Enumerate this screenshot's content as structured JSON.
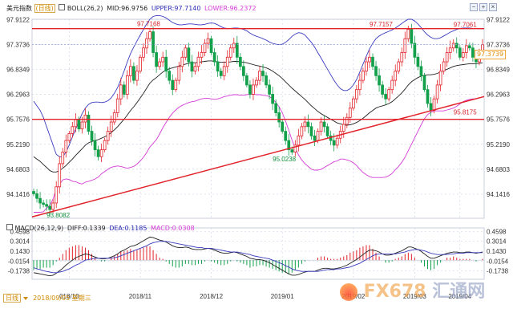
{
  "header": {
    "symbol": "美元指数",
    "period_badge": "(日线)",
    "boll_label": "BOLL(26,2)",
    "mid_label": "MID:96.9756",
    "upper_label": "UPPER:97.7140",
    "lower_label": "LOWER:96.2372"
  },
  "macd_header": {
    "label": "MACD(26,12,9)",
    "diff": "DIFF:0.1339",
    "dea": "DEA:0.1185",
    "macd": "MACD:0.0308"
  },
  "bottom_bar": {
    "period_tab": "日线",
    "cursor_date": "2018/09/05  星期三"
  },
  "toolbar": {
    "minus_icon_glyph": "−",
    "plus_icon_glyph": "+",
    "close_icon_glyph": "×"
  },
  "current_price_tag": "97.3739",
  "watermark": {
    "brand": "FX678",
    "cn": "汇通网"
  },
  "colors": {
    "up": "#e2232a",
    "down": "#12a04a",
    "upper_band": "#3b3bbf",
    "lower_band": "#d43bd4",
    "mid_band": "#222222",
    "resistance": "#e2232a",
    "trendline": "#e2232a",
    "diff_line": "#222222",
    "dea_line": "#3b3bbf",
    "price_tag": "#f1a33a"
  },
  "chart_data": [
    {
      "type": "candlestick",
      "title": "",
      "x_ticks": [
        "018/10",
        "2018/11",
        "2018/12",
        "2019/01",
        "2019/02",
        "2019/03",
        "2019/04"
      ],
      "y_ticks": [
        "97.9122",
        "97.3736",
        "96.8349",
        "96.2963",
        "95.7576",
        "95.2190",
        "94.6803",
        "94.1416"
      ],
      "right_y_ticks": [
        "97.9122",
        "97.3736",
        "96.8349",
        "96.2963",
        "95.7576",
        "95.2190",
        "94.6803",
        "94.1416"
      ],
      "ylim": [
        93.62,
        97.92
      ],
      "annotations": [
        {
          "text": "97.7168",
          "value": 97.7168
        },
        {
          "text": "97.7157",
          "value": 97.7157
        },
        {
          "text": "97.7061",
          "value": 97.7061
        },
        {
          "text": "95.8175",
          "value": 95.8175
        },
        {
          "text": "95.0238",
          "value": 95.0238
        },
        {
          "text": "93.8082",
          "value": 93.8082
        }
      ],
      "horizontal_lines": [
        97.7168,
        95.7576
      ],
      "current_price": 97.3739,
      "trendline": {
        "from": [
          0,
          93.65
        ],
        "to": [
          139,
          96.25
        ]
      },
      "closes": [
        94.15,
        94.05,
        93.95,
        93.92,
        93.88,
        93.81,
        93.95,
        94.3,
        94.8,
        95.05,
        95.3,
        95.45,
        95.6,
        95.75,
        95.55,
        95.7,
        95.85,
        95.5,
        95.3,
        95.1,
        94.95,
        95.1,
        95.3,
        95.5,
        95.7,
        95.9,
        96.2,
        96.5,
        96.3,
        96.7,
        96.9,
        96.6,
        96.8,
        97.1,
        97.3,
        97.5,
        97.65,
        97.2,
        96.9,
        97.0,
        97.1,
        96.8,
        96.6,
        96.4,
        96.6,
        96.9,
        97.1,
        97.3,
        97.0,
        96.8,
        96.9,
        97.1,
        97.2,
        97.4,
        97.5,
        97.2,
        97.0,
        96.8,
        96.7,
        96.9,
        97.1,
        97.3,
        97.4,
        97.1,
        96.9,
        96.7,
        96.5,
        96.3,
        96.5,
        96.6,
        96.8,
        96.7,
        96.5,
        96.3,
        96.1,
        95.9,
        95.7,
        95.5,
        95.3,
        95.1,
        95.05,
        95.2,
        95.4,
        95.6,
        95.7,
        95.6,
        95.4,
        95.3,
        95.5,
        95.7,
        95.6,
        95.4,
        95.3,
        95.2,
        95.35,
        95.5,
        95.65,
        95.8,
        96.0,
        96.2,
        96.4,
        96.6,
        96.8,
        97.0,
        97.1,
        96.9,
        96.7,
        96.5,
        96.3,
        96.2,
        96.4,
        96.6,
        96.8,
        97.0,
        97.2,
        97.5,
        97.7,
        97.4,
        97.1,
        96.9,
        96.7,
        96.4,
        96.1,
        95.95,
        96.2,
        96.5,
        96.8,
        97.0,
        97.2,
        97.3,
        97.4,
        97.3,
        97.1,
        97.2,
        97.35,
        97.3,
        97.1,
        97.0,
        97.2,
        97.37
      ],
      "mid": [
        94.95,
        94.9,
        94.85,
        94.78,
        94.72,
        94.65,
        94.62,
        94.62,
        94.65,
        94.7,
        94.76,
        94.83,
        94.9,
        94.98,
        95.05,
        95.12,
        95.2,
        95.25,
        95.28,
        95.3,
        95.32,
        95.35,
        95.38,
        95.42,
        95.47,
        95.53,
        95.6,
        95.68,
        95.76,
        95.85,
        95.95,
        96.03,
        96.12,
        96.22,
        96.32,
        96.43,
        96.54,
        96.61,
        96.66,
        96.72,
        96.78,
        96.82,
        96.85,
        96.87,
        96.89,
        96.91,
        96.93,
        96.95,
        96.97,
        96.98,
        96.98,
        96.99,
        97.0,
        97.01,
        97.02,
        97.02,
        97.01,
        97.0,
        96.99,
        96.99,
        96.99,
        97.0,
        97.01,
        97.01,
        97.0,
        96.99,
        96.98,
        96.96,
        96.94,
        96.92,
        96.91,
        96.89,
        96.87,
        96.84,
        96.8,
        96.75,
        96.7,
        96.64,
        96.57,
        96.5,
        96.43,
        96.37,
        96.31,
        96.25,
        96.19,
        96.12,
        96.05,
        95.99,
        95.93,
        95.88,
        95.84,
        95.8,
        95.76,
        95.72,
        95.68,
        95.66,
        95.64,
        95.63,
        95.64,
        95.66,
        95.69,
        95.73,
        95.78,
        95.84,
        95.9,
        95.95,
        96.0,
        96.03,
        96.05,
        96.07,
        96.1,
        96.14,
        96.2,
        96.26,
        96.33,
        96.41,
        96.5,
        96.57,
        96.62,
        96.66,
        96.69,
        96.71,
        96.72,
        96.72,
        96.73,
        96.75,
        96.78,
        96.81,
        96.84,
        96.87,
        96.9,
        96.92,
        96.93,
        96.94,
        96.95,
        96.96,
        96.96,
        96.96,
        96.97,
        96.98
      ],
      "upper": [
        96.15,
        96.05,
        95.95,
        95.8,
        95.6,
        95.4,
        95.2,
        95.0,
        94.95,
        94.95,
        95.05,
        95.2,
        95.38,
        95.55,
        95.72,
        95.88,
        96.0,
        96.08,
        96.12,
        96.13,
        96.13,
        96.12,
        96.13,
        96.16,
        96.22,
        96.32,
        96.45,
        96.62,
        96.8,
        97.0,
        97.18,
        97.32,
        97.45,
        97.58,
        97.7,
        97.82,
        97.92,
        97.98,
        98.0,
        98.0,
        97.98,
        97.95,
        97.9,
        97.85,
        97.82,
        97.8,
        97.8,
        97.81,
        97.82,
        97.82,
        97.81,
        97.8,
        97.8,
        97.81,
        97.83,
        97.84,
        97.83,
        97.8,
        97.76,
        97.73,
        97.72,
        97.72,
        97.73,
        97.73,
        97.72,
        97.7,
        97.67,
        97.62,
        97.58,
        97.55,
        97.53,
        97.5,
        97.47,
        97.43,
        97.4,
        97.38,
        97.37,
        97.38,
        97.42,
        97.48,
        97.55,
        97.6,
        97.63,
        97.62,
        97.58,
        97.5,
        97.42,
        97.32,
        97.2,
        97.08,
        96.96,
        96.84,
        96.72,
        96.6,
        96.5,
        96.42,
        96.38,
        96.38,
        96.42,
        96.5,
        96.62,
        96.78,
        96.95,
        97.12,
        97.28,
        97.4,
        97.5,
        97.56,
        97.6,
        97.63,
        97.66,
        97.69,
        97.73,
        97.78,
        97.83,
        97.88,
        97.92,
        97.92,
        97.88,
        97.82,
        97.74,
        97.65,
        97.58,
        97.53,
        97.5,
        97.5,
        97.52,
        97.56,
        97.6,
        97.64,
        97.67,
        97.7,
        97.72,
        97.73,
        97.73,
        97.73,
        97.72,
        97.72,
        97.72,
        97.71
      ],
      "lower": [
        93.75,
        93.75,
        93.75,
        93.76,
        93.84,
        93.9,
        94.04,
        94.24,
        94.35,
        94.45,
        94.47,
        94.46,
        94.42,
        94.41,
        94.38,
        94.36,
        94.4,
        94.42,
        94.44,
        94.47,
        94.51,
        94.58,
        94.63,
        94.68,
        94.72,
        94.74,
        94.75,
        94.74,
        94.72,
        94.7,
        94.72,
        94.74,
        94.79,
        94.86,
        94.94,
        95.04,
        95.16,
        95.24,
        95.32,
        95.44,
        95.58,
        95.69,
        95.8,
        95.89,
        95.96,
        96.02,
        96.06,
        96.09,
        96.12,
        96.14,
        96.15,
        96.18,
        96.2,
        96.21,
        96.21,
        96.2,
        96.19,
        96.2,
        96.22,
        96.25,
        96.26,
        96.28,
        96.29,
        96.29,
        96.28,
        96.28,
        96.29,
        96.3,
        96.3,
        96.29,
        96.29,
        96.28,
        96.27,
        96.25,
        96.2,
        96.12,
        96.03,
        95.9,
        95.72,
        95.52,
        95.31,
        95.14,
        94.99,
        94.88,
        94.8,
        94.74,
        94.68,
        94.66,
        94.66,
        94.68,
        94.72,
        94.76,
        94.8,
        94.84,
        94.86,
        94.9,
        94.9,
        94.88,
        94.86,
        94.82,
        94.76,
        94.68,
        94.61,
        94.56,
        94.52,
        94.5,
        94.5,
        94.5,
        94.5,
        94.51,
        94.54,
        94.59,
        94.67,
        94.74,
        94.83,
        94.94,
        95.08,
        95.22,
        95.36,
        95.5,
        95.64,
        95.77,
        95.86,
        95.91,
        95.94,
        95.94,
        95.94,
        95.94,
        95.96,
        95.98,
        96.0,
        96.04,
        96.09,
        96.14,
        96.17,
        96.19,
        96.2,
        96.2,
        96.22,
        96.24
      ]
    },
    {
      "type": "macd",
      "title": "",
      "y_ticks": [
        "0.4598",
        "0.3014",
        "0.1430",
        "-0.0154",
        "-0.1738"
      ],
      "ylim": [
        -0.28,
        0.49
      ],
      "diff": [
        -0.2,
        -0.21,
        -0.22,
        -0.23,
        -0.24,
        -0.25,
        -0.24,
        -0.21,
        -0.17,
        -0.13,
        -0.08,
        -0.04,
        0.0,
        0.04,
        0.06,
        0.08,
        0.1,
        0.09,
        0.07,
        0.05,
        0.03,
        0.02,
        0.02,
        0.03,
        0.05,
        0.07,
        0.1,
        0.14,
        0.16,
        0.19,
        0.22,
        0.23,
        0.25,
        0.28,
        0.31,
        0.34,
        0.37,
        0.36,
        0.34,
        0.32,
        0.31,
        0.29,
        0.26,
        0.23,
        0.21,
        0.2,
        0.2,
        0.21,
        0.2,
        0.18,
        0.17,
        0.17,
        0.17,
        0.18,
        0.19,
        0.18,
        0.16,
        0.14,
        0.12,
        0.11,
        0.11,
        0.12,
        0.13,
        0.12,
        0.1,
        0.08,
        0.06,
        0.03,
        0.02,
        0.01,
        0.01,
        0.0,
        -0.02,
        -0.04,
        -0.07,
        -0.1,
        -0.13,
        -0.16,
        -0.19,
        -0.22,
        -0.24,
        -0.24,
        -0.23,
        -0.21,
        -0.19,
        -0.18,
        -0.18,
        -0.18,
        -0.16,
        -0.14,
        -0.13,
        -0.13,
        -0.14,
        -0.14,
        -0.13,
        -0.12,
        -0.1,
        -0.08,
        -0.05,
        -0.02,
        0.01,
        0.05,
        0.09,
        0.13,
        0.16,
        0.16,
        0.15,
        0.13,
        0.1,
        0.08,
        0.08,
        0.09,
        0.11,
        0.13,
        0.15,
        0.18,
        0.21,
        0.21,
        0.19,
        0.17,
        0.14,
        0.1,
        0.06,
        0.03,
        0.03,
        0.05,
        0.07,
        0.09,
        0.11,
        0.12,
        0.13,
        0.13,
        0.12,
        0.12,
        0.13,
        0.13,
        0.12,
        0.11,
        0.12,
        0.13
      ],
      "dea": [
        -0.12,
        -0.14,
        -0.15,
        -0.17,
        -0.18,
        -0.19,
        -0.2,
        -0.2,
        -0.19,
        -0.18,
        -0.16,
        -0.14,
        -0.11,
        -0.08,
        -0.06,
        -0.03,
        0.0,
        0.01,
        0.02,
        0.03,
        0.03,
        0.03,
        0.03,
        0.03,
        0.03,
        0.04,
        0.05,
        0.07,
        0.09,
        0.11,
        0.13,
        0.15,
        0.17,
        0.19,
        0.21,
        0.23,
        0.26,
        0.28,
        0.29,
        0.3,
        0.3,
        0.3,
        0.29,
        0.28,
        0.27,
        0.26,
        0.25,
        0.24,
        0.23,
        0.22,
        0.21,
        0.2,
        0.2,
        0.19,
        0.19,
        0.19,
        0.18,
        0.17,
        0.16,
        0.15,
        0.14,
        0.13,
        0.13,
        0.13,
        0.12,
        0.11,
        0.1,
        0.09,
        0.07,
        0.06,
        0.05,
        0.04,
        0.03,
        0.02,
        0.0,
        -0.02,
        -0.04,
        -0.06,
        -0.09,
        -0.11,
        -0.14,
        -0.16,
        -0.17,
        -0.18,
        -0.18,
        -0.18,
        -0.18,
        -0.18,
        -0.18,
        -0.17,
        -0.16,
        -0.15,
        -0.15,
        -0.15,
        -0.14,
        -0.14,
        -0.13,
        -0.12,
        -0.11,
        -0.09,
        -0.07,
        -0.05,
        -0.02,
        0.01,
        0.04,
        0.07,
        0.09,
        0.1,
        0.1,
        0.1,
        0.1,
        0.1,
        0.1,
        0.11,
        0.12,
        0.13,
        0.15,
        0.16,
        0.17,
        0.17,
        0.16,
        0.15,
        0.13,
        0.11,
        0.1,
        0.09,
        0.09,
        0.09,
        0.09,
        0.1,
        0.1,
        0.11,
        0.11,
        0.11,
        0.12,
        0.12,
        0.12,
        0.12,
        0.12,
        0.12
      ]
    }
  ]
}
